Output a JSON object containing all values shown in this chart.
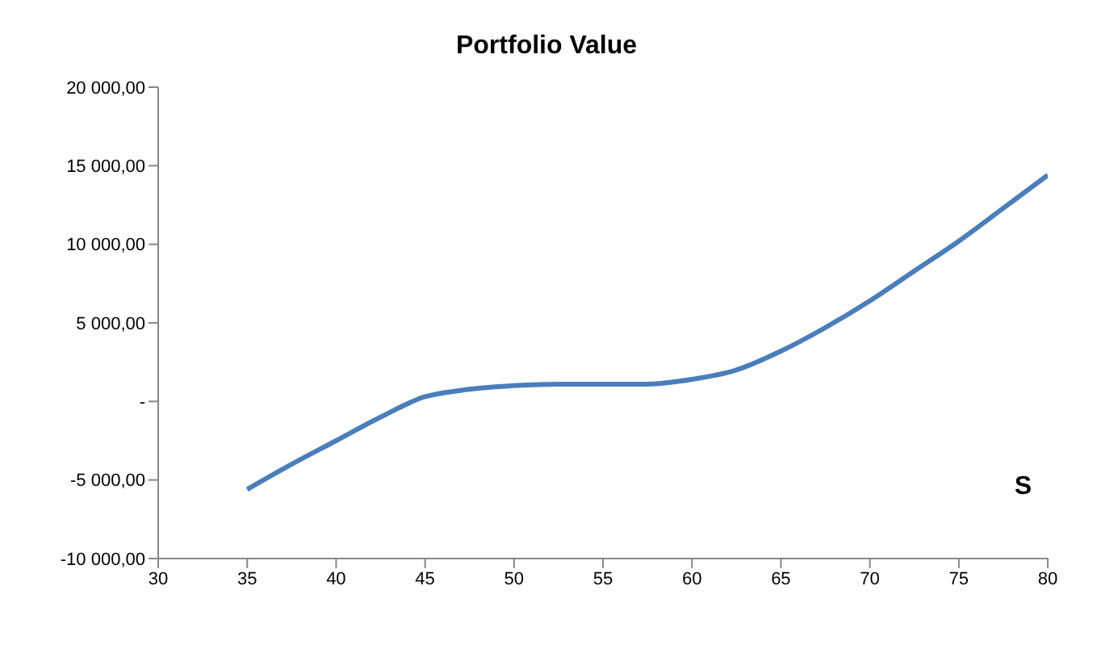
{
  "chart_data": {
    "type": "line",
    "title": "Portfolio Value",
    "xlabel": "S",
    "x": [
      35,
      37.5,
      40,
      42.5,
      45,
      47,
      50,
      52.5,
      55,
      57.5,
      60,
      62.5,
      65,
      67.5,
      70,
      72.5,
      75,
      77.5,
      80
    ],
    "series": [
      {
        "color": "#4a7ebb",
        "values": [
          -5600,
          -4000,
          -2500,
          -1000,
          300,
          700,
          1000,
          1100,
          1100,
          1100,
          1400,
          2000,
          3200,
          4700,
          6400,
          8300,
          10200,
          12300,
          14400
        ]
      }
    ],
    "xlim": [
      30,
      80
    ],
    "xticks": [
      30,
      35,
      40,
      45,
      50,
      55,
      60,
      65,
      70,
      75,
      80
    ],
    "ylim": [
      -10000,
      20000
    ],
    "yticks": [
      {
        "value": -10000,
        "label": "-10 000,00"
      },
      {
        "value": -5000,
        "label": "-5 000,00"
      },
      {
        "value": 0,
        "label": "-"
      },
      {
        "value": 5000,
        "label": "5 000,00"
      },
      {
        "value": 10000,
        "label": "10 000,00"
      },
      {
        "value": 15000,
        "label": "15 000,00"
      },
      {
        "value": 20000,
        "label": "20 000,00"
      }
    ],
    "grid": false,
    "marker": "none",
    "line_style": "solid"
  }
}
